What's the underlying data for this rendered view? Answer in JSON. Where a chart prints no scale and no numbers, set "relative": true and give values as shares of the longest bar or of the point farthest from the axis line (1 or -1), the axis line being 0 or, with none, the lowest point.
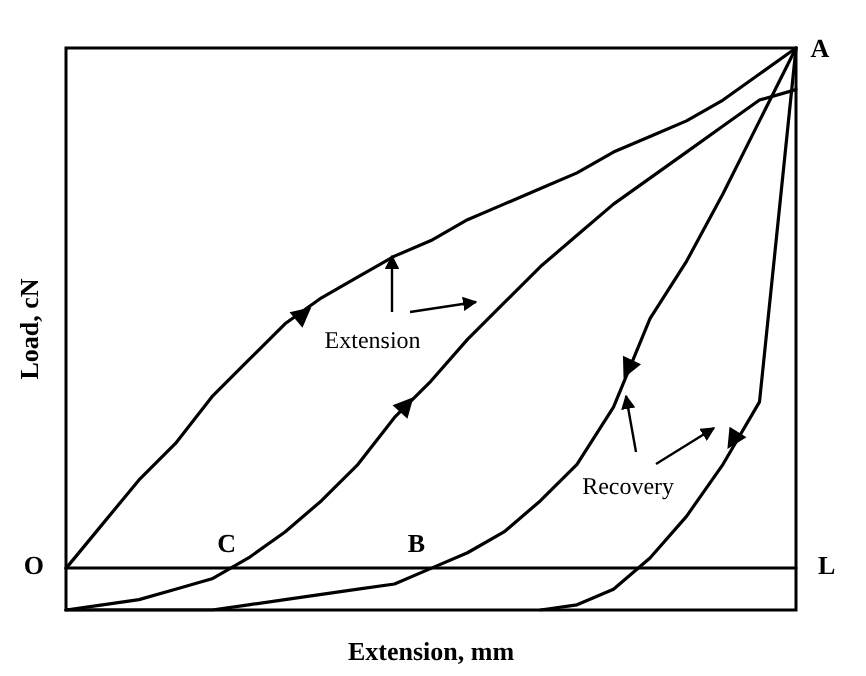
{
  "chart_data": {
    "type": "line",
    "relative": true,
    "xlabel": "Extension, mm",
    "ylabel": "Load, cN",
    "categories": [
      null,
      null,
      null,
      null,
      null,
      null,
      null,
      null,
      null,
      null,
      null,
      null,
      null,
      null,
      null,
      null,
      null,
      null,
      null,
      null,
      null
    ],
    "series": [
      {
        "color": "#000000",
        "values": [
          0,
          0.085,
          0.17,
          0.24,
          0.33,
          0.4,
          0.47,
          0.52,
          0.56,
          0.6,
          0.63,
          0.67,
          0.7,
          0.73,
          0.76,
          0.8,
          0.83,
          0.86,
          0.9,
          0.95,
          1
        ]
      },
      {
        "color": "#000000",
        "values": [
          -0.08,
          -0.07,
          -0.06,
          -0.04,
          -0.02,
          0.02,
          0.07,
          0.13,
          0.2,
          0.29,
          0.36,
          0.44,
          0.51,
          0.58,
          0.64,
          0.7,
          0.75,
          0.8,
          0.85,
          0.9,
          0.92
        ]
      },
      {
        "color": "#000000",
        "values": [
          -0.08,
          -0.08,
          -0.08,
          -0.08,
          -0.08,
          -0.07,
          -0.06,
          -0.05,
          -0.04,
          -0.03,
          0,
          0.03,
          0.07,
          0.13,
          0.2,
          0.31,
          0.48,
          0.59,
          0.72,
          0.86,
          1
        ]
      },
      {
        "color": "#000000",
        "values": [
          null,
          null,
          null,
          null,
          null,
          null,
          null,
          null,
          null,
          null,
          null,
          null,
          null,
          -0.08,
          -0.07,
          -0.04,
          0.02,
          0.1,
          0.2,
          0.32,
          1
        ]
      }
    ],
    "annotations": [
      "A",
      "O",
      "C",
      "B",
      "L",
      "Extension",
      "Recovery"
    ],
    "marker": "none",
    "line_style": "solid",
    "grid": false
  }
}
